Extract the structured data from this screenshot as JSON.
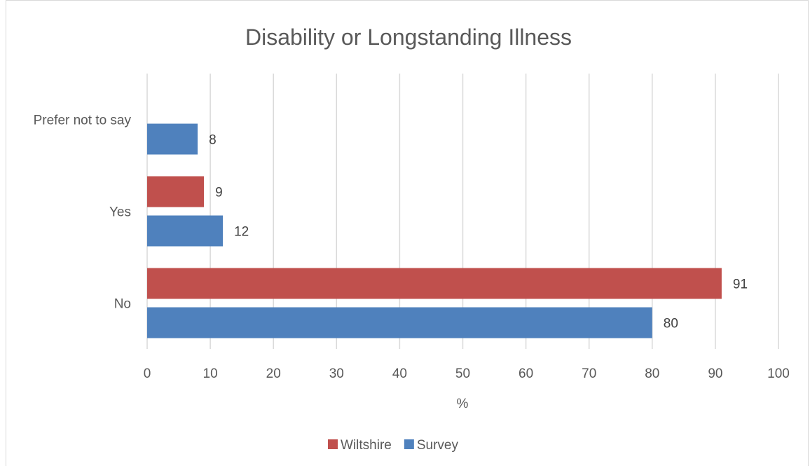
{
  "chart_data": {
    "type": "bar",
    "orientation": "horizontal",
    "title": "Disability or Longstanding Illness",
    "xlabel": "%",
    "ylabel": "",
    "xlim": [
      0,
      100
    ],
    "x_ticks": [
      0,
      10,
      20,
      30,
      40,
      50,
      60,
      70,
      80,
      90,
      100
    ],
    "categories": [
      "No",
      "Yes",
      "Prefer not to say"
    ],
    "series": [
      {
        "name": "Wiltshire",
        "color": "#c0504d",
        "values": [
          91,
          9,
          null
        ]
      },
      {
        "name": "Survey",
        "color": "#4f81bd",
        "values": [
          80,
          12,
          8
        ]
      }
    ],
    "grid": true,
    "legend_position": "bottom",
    "data_labels": true
  }
}
